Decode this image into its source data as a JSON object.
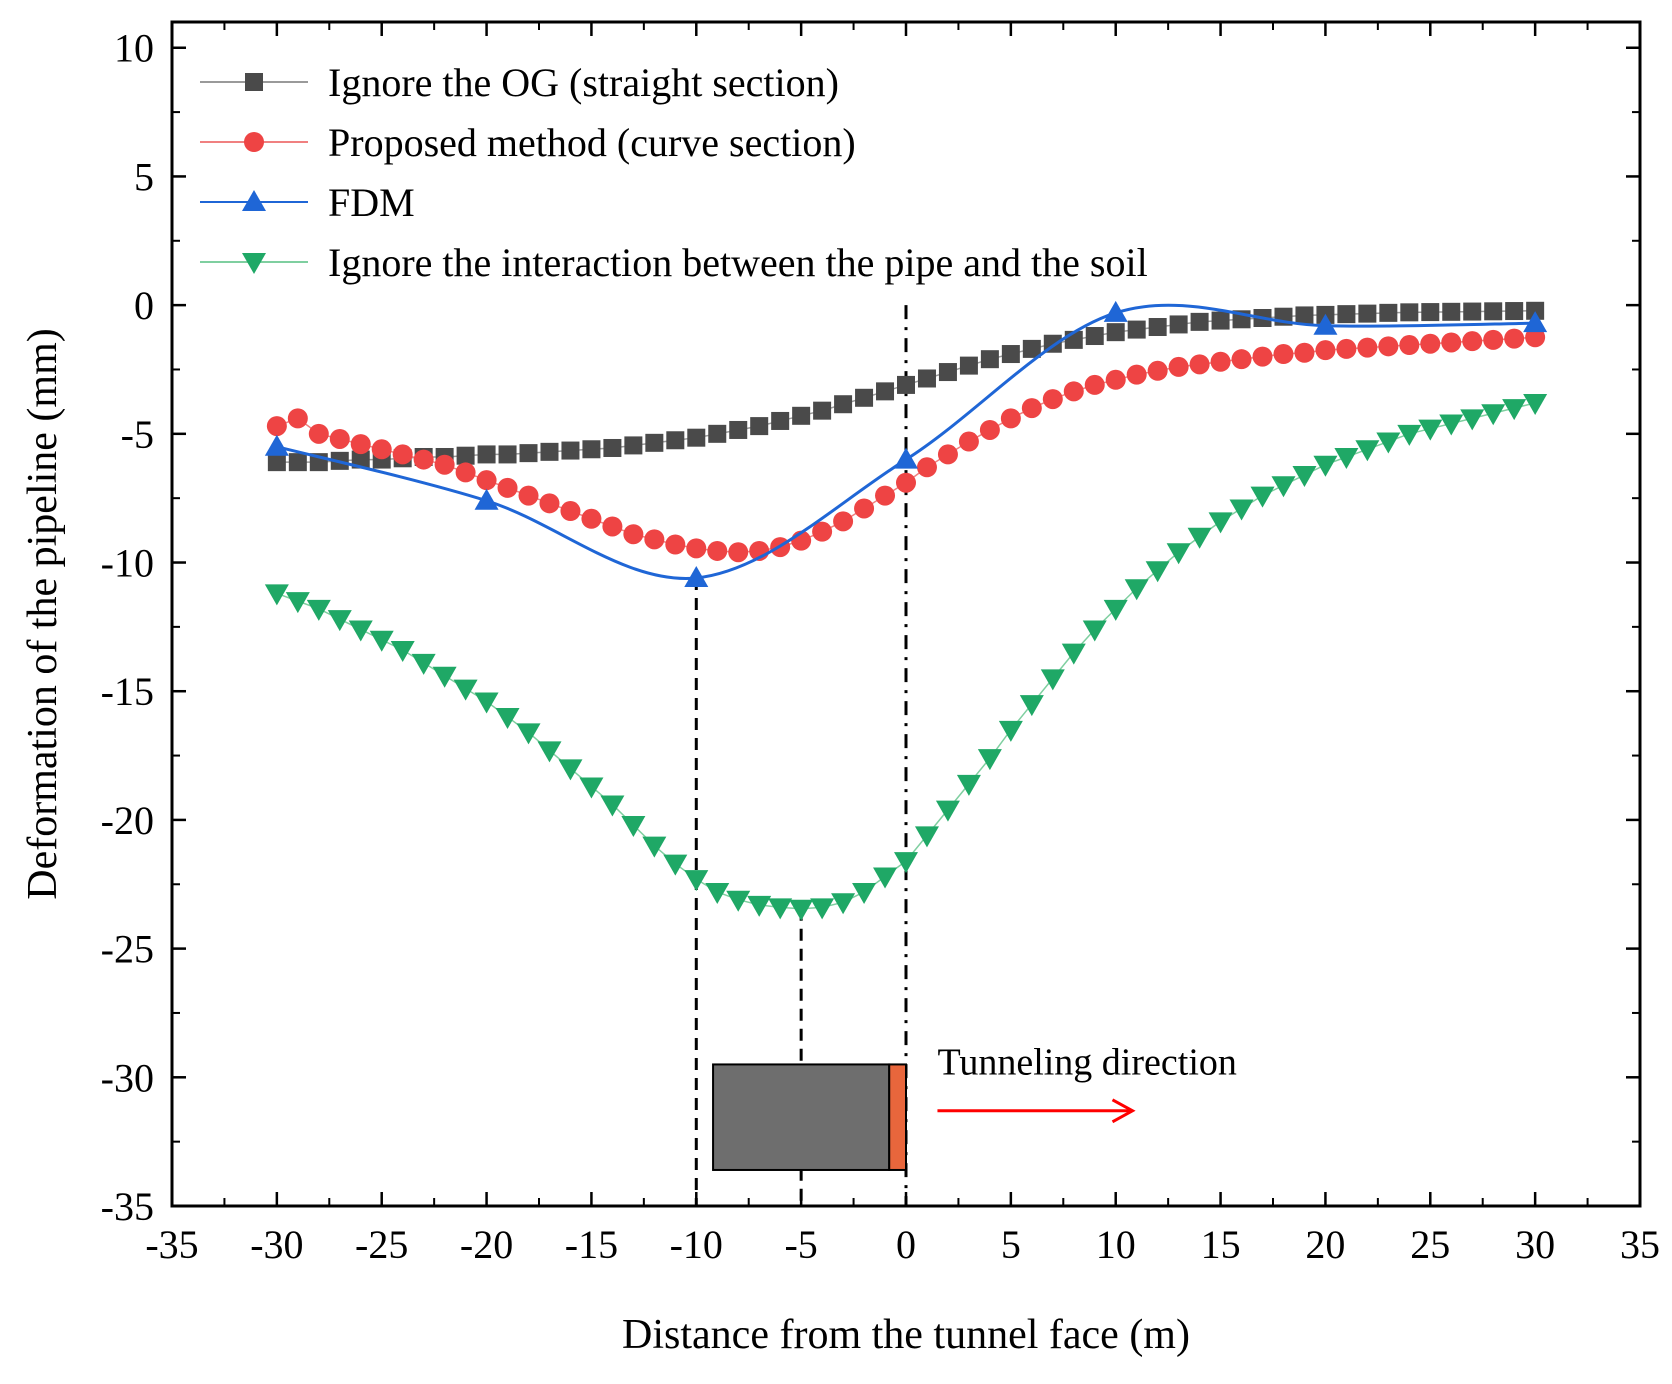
{
  "chart_data": {
    "type": "line",
    "title": "",
    "xlabel": "Distance from the tunnel face (m)",
    "ylabel": "Deformation of the pipeline (mm)",
    "xlim": [
      -35,
      35
    ],
    "ylim": [
      -35,
      11
    ],
    "xticks": [
      -35,
      -30,
      -25,
      -20,
      -15,
      -10,
      -5,
      0,
      5,
      10,
      15,
      20,
      25,
      30,
      35
    ],
    "yticks": [
      10,
      5,
      0,
      -5,
      -10,
      -15,
      -20,
      -25,
      -30,
      -35
    ],
    "xtick_labels": [
      "-35",
      "-30",
      "-25",
      "-20",
      "-15",
      "-10",
      "-5",
      "0",
      "5",
      "10",
      "15",
      "20",
      "25",
      "30",
      "35"
    ],
    "ytick_labels": [
      "10",
      "5",
      "0",
      "-5",
      "-10",
      "-15",
      "-20",
      "-25",
      "-30",
      "-35"
    ],
    "legend_position": "top-left",
    "series": [
      {
        "name": "Ignore the OG (straight section)",
        "marker": "square",
        "color": "#4a4a4a",
        "line_color": "#9a9a9a",
        "x": [
          -30,
          -29,
          -28,
          -27,
          -26,
          -25,
          -24,
          -23,
          -22,
          -21,
          -20,
          -19,
          -18,
          -17,
          -16,
          -15,
          -14,
          -13,
          -12,
          -11,
          -10,
          -9,
          -8,
          -7,
          -6,
          -5,
          -4,
          -3,
          -2,
          -1,
          0,
          1,
          2,
          3,
          4,
          5,
          6,
          7,
          8,
          9,
          10,
          11,
          12,
          13,
          14,
          15,
          16,
          17,
          18,
          19,
          20,
          21,
          22,
          23,
          24,
          25,
          26,
          27,
          28,
          29,
          30
        ],
        "y": [
          -6.1,
          -6.1,
          -6.1,
          -6.05,
          -6.0,
          -6.0,
          -5.95,
          -5.9,
          -5.9,
          -5.85,
          -5.8,
          -5.8,
          -5.75,
          -5.7,
          -5.65,
          -5.6,
          -5.55,
          -5.45,
          -5.35,
          -5.25,
          -5.15,
          -5.0,
          -4.85,
          -4.7,
          -4.5,
          -4.3,
          -4.1,
          -3.85,
          -3.6,
          -3.35,
          -3.1,
          -2.85,
          -2.6,
          -2.35,
          -2.1,
          -1.9,
          -1.7,
          -1.5,
          -1.35,
          -1.2,
          -1.05,
          -0.95,
          -0.85,
          -0.75,
          -0.65,
          -0.6,
          -0.55,
          -0.5,
          -0.45,
          -0.4,
          -0.38,
          -0.35,
          -0.33,
          -0.3,
          -0.28,
          -0.27,
          -0.26,
          -0.25,
          -0.24,
          -0.23,
          -0.22
        ]
      },
      {
        "name": "Proposed method (curve section)",
        "marker": "circle",
        "color": "#ee4444",
        "line_color": "#f08080",
        "x": [
          -30,
          -29,
          -28,
          -27,
          -26,
          -25,
          -24,
          -23,
          -22,
          -21,
          -20,
          -19,
          -18,
          -17,
          -16,
          -15,
          -14,
          -13,
          -12,
          -11,
          -10,
          -9,
          -8,
          -7,
          -6,
          -5,
          -4,
          -3,
          -2,
          -1,
          0,
          1,
          2,
          3,
          4,
          5,
          6,
          7,
          8,
          9,
          10,
          11,
          12,
          13,
          14,
          15,
          16,
          17,
          18,
          19,
          20,
          21,
          22,
          23,
          24,
          25,
          26,
          27,
          28,
          29,
          30
        ],
        "y": [
          -4.7,
          -4.4,
          -5.0,
          -5.2,
          -5.4,
          -5.6,
          -5.8,
          -6.0,
          -6.2,
          -6.5,
          -6.8,
          -7.1,
          -7.4,
          -7.7,
          -8.0,
          -8.3,
          -8.6,
          -8.9,
          -9.1,
          -9.3,
          -9.45,
          -9.55,
          -9.6,
          -9.55,
          -9.4,
          -9.15,
          -8.8,
          -8.4,
          -7.9,
          -7.4,
          -6.9,
          -6.3,
          -5.8,
          -5.3,
          -4.85,
          -4.4,
          -4.0,
          -3.65,
          -3.35,
          -3.1,
          -2.9,
          -2.7,
          -2.55,
          -2.4,
          -2.3,
          -2.2,
          -2.1,
          -2.0,
          -1.9,
          -1.85,
          -1.75,
          -1.7,
          -1.65,
          -1.6,
          -1.55,
          -1.5,
          -1.45,
          -1.4,
          -1.35,
          -1.3,
          -1.25
        ]
      },
      {
        "name": "FDM",
        "marker": "triangle-up",
        "color": "#1f66d6",
        "line_color": "#1f66d6",
        "x": [
          -30,
          -20,
          -10,
          0,
          10,
          20,
          30
        ],
        "y": [
          -5.5,
          -7.6,
          -10.6,
          -6.0,
          -0.3,
          -0.8,
          -0.7
        ]
      },
      {
        "name": "Ignore the interaction between the pipe and the soil",
        "marker": "triangle-down",
        "color": "#1fa866",
        "line_color": "#7fcfa0",
        "x": [
          -30,
          -29,
          -28,
          -27,
          -26,
          -25,
          -24,
          -23,
          -22,
          -21,
          -20,
          -19,
          -18,
          -17,
          -16,
          -15,
          -14,
          -13,
          -12,
          -11,
          -10,
          -9,
          -8,
          -7,
          -6,
          -5,
          -4,
          -3,
          -2,
          -1,
          0,
          1,
          2,
          3,
          4,
          5,
          6,
          7,
          8,
          9,
          10,
          11,
          12,
          13,
          14,
          15,
          16,
          17,
          18,
          19,
          20,
          21,
          22,
          23,
          24,
          25,
          26,
          27,
          28,
          29,
          30
        ],
        "y": [
          -11.2,
          -11.5,
          -11.8,
          -12.2,
          -12.6,
          -13.0,
          -13.4,
          -13.9,
          -14.4,
          -14.9,
          -15.4,
          -16.0,
          -16.6,
          -17.3,
          -18.0,
          -18.7,
          -19.4,
          -20.2,
          -21.0,
          -21.7,
          -22.3,
          -22.8,
          -23.1,
          -23.3,
          -23.4,
          -23.45,
          -23.4,
          -23.2,
          -22.8,
          -22.2,
          -21.6,
          -20.6,
          -19.6,
          -18.6,
          -17.6,
          -16.5,
          -15.5,
          -14.5,
          -13.5,
          -12.6,
          -11.8,
          -11.0,
          -10.3,
          -9.6,
          -9.0,
          -8.4,
          -7.9,
          -7.4,
          -7.0,
          -6.6,
          -6.2,
          -5.9,
          -5.6,
          -5.3,
          -5.0,
          -4.8,
          -4.6,
          -4.4,
          -4.2,
          -4.0,
          -3.8
        ]
      }
    ],
    "reference_lines": [
      {
        "x": -10,
        "style": "dashed",
        "y_from": -10.6,
        "y_to": -35
      },
      {
        "x": -5,
        "style": "dashed",
        "y_from": -23.45,
        "y_to": -35
      },
      {
        "x": 0,
        "style": "dash-dot",
        "y_from": 0,
        "y_to": -35
      }
    ],
    "annotation": {
      "text": "Tunneling direction",
      "box_x_range": [
        -9.2,
        0
      ],
      "box_y_range": [
        -29.5,
        -33.6
      ],
      "cutter_x_range": [
        -0.8,
        0
      ],
      "box_color": "#6e6e6e",
      "cutter_color": "#e8663c",
      "arrow_color": "#ff0000",
      "arrow_x_range": [
        1.5,
        10.8
      ],
      "arrow_y": -31.3
    }
  }
}
